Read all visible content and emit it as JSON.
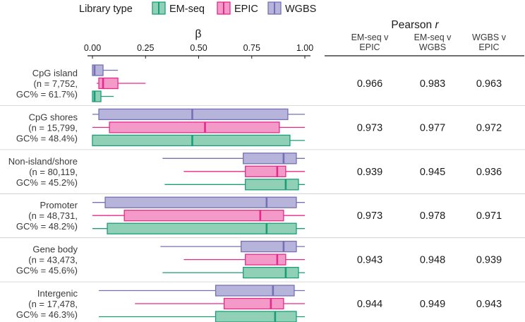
{
  "legend": {
    "title": "Library type",
    "items": [
      {
        "label": "EM-seq",
        "key": "emseq"
      },
      {
        "label": "EPIC",
        "key": "epic"
      },
      {
        "label": "WGBS",
        "key": "wgbs"
      }
    ]
  },
  "colors": {
    "emseq_fill": "#8fd0b6",
    "emseq_line": "#1b9e77",
    "epic_fill": "#f39ac8",
    "epic_line": "#e7298a",
    "wgbs_fill": "#b6b4da",
    "wgbs_line": "#7570b3",
    "axis": "#1a1a1a"
  },
  "chart_data": {
    "type": "boxplot",
    "title": "β",
    "xlim": [
      0,
      1
    ],
    "x_ticks": [
      0,
      0.25,
      0.5,
      0.75,
      1
    ],
    "x_tick_labels": [
      "0.00",
      "0.25",
      "0.50",
      "0.75",
      "1.00"
    ],
    "series_order": [
      "wgbs",
      "epic",
      "emseq"
    ],
    "groups": [
      {
        "label": [
          "CpG island",
          "(n = 7,752,",
          "GC% = 61.7%)"
        ],
        "boxes": {
          "wgbs": {
            "whislo": 0.0,
            "q1": 0.0,
            "median": 0.01,
            "q3": 0.05,
            "whishi": 0.12
          },
          "epic": {
            "whislo": 0.02,
            "q1": 0.03,
            "median": 0.05,
            "q3": 0.12,
            "whishi": 0.25
          },
          "emseq": {
            "whislo": 0.0,
            "q1": 0.0,
            "median": 0.01,
            "q3": 0.04,
            "whishi": 0.1
          }
        }
      },
      {
        "label": [
          "CpG shores",
          "(n = 15,799,",
          "GC% = 48.4%)"
        ],
        "boxes": {
          "wgbs": {
            "whislo": 0.0,
            "q1": 0.03,
            "median": 0.47,
            "q3": 0.92,
            "whishi": 1.0
          },
          "epic": {
            "whislo": 0.0,
            "q1": 0.08,
            "median": 0.53,
            "q3": 0.88,
            "whishi": 1.0
          },
          "emseq": {
            "whislo": 0.0,
            "q1": 0.0,
            "median": 0.47,
            "q3": 0.93,
            "whishi": 1.0
          }
        }
      },
      {
        "label": [
          "Non-island/shore",
          "(n = 80,119,",
          "GC% = 45.2%)"
        ],
        "boxes": {
          "wgbs": {
            "whislo": 0.33,
            "q1": 0.71,
            "median": 0.9,
            "q3": 0.96,
            "whishi": 1.0
          },
          "epic": {
            "whislo": 0.43,
            "q1": 0.72,
            "median": 0.87,
            "q3": 0.91,
            "whishi": 1.0
          },
          "emseq": {
            "whislo": 0.34,
            "q1": 0.72,
            "median": 0.91,
            "q3": 0.97,
            "whishi": 1.0
          }
        }
      },
      {
        "label": [
          "Promoter",
          "(n = 48,731,",
          "GC% = 48.2%)"
        ],
        "boxes": {
          "wgbs": {
            "whislo": 0.0,
            "q1": 0.06,
            "median": 0.82,
            "q3": 0.96,
            "whishi": 1.0
          },
          "epic": {
            "whislo": 0.0,
            "q1": 0.15,
            "median": 0.79,
            "q3": 0.9,
            "whishi": 1.0
          },
          "emseq": {
            "whislo": 0.0,
            "q1": 0.07,
            "median": 0.82,
            "q3": 0.96,
            "whishi": 1.0
          }
        }
      },
      {
        "label": [
          "Gene body",
          "(n = 43,473,",
          "GC% = 45.6%)"
        ],
        "boxes": {
          "wgbs": {
            "whislo": 0.32,
            "q1": 0.7,
            "median": 0.9,
            "q3": 0.96,
            "whishi": 1.0
          },
          "epic": {
            "whislo": 0.43,
            "q1": 0.72,
            "median": 0.87,
            "q3": 0.91,
            "whishi": 1.0
          },
          "emseq": {
            "whislo": 0.33,
            "q1": 0.71,
            "median": 0.91,
            "q3": 0.97,
            "whishi": 1.0
          }
        }
      },
      {
        "label": [
          "Intergenic",
          "(n = 17,478,",
          "GC% = 46.3%)"
        ],
        "boxes": {
          "wgbs": {
            "whislo": 0.03,
            "q1": 0.58,
            "median": 0.85,
            "q3": 0.95,
            "whishi": 1.0
          },
          "epic": {
            "whislo": 0.2,
            "q1": 0.62,
            "median": 0.84,
            "q3": 0.9,
            "whishi": 1.0
          },
          "emseq": {
            "whislo": 0.03,
            "q1": 0.58,
            "median": 0.86,
            "q3": 0.96,
            "whishi": 1.0
          }
        }
      }
    ]
  },
  "pearson": {
    "title_prefix": "Pearson ",
    "title_var": "r",
    "columns": [
      [
        "EM-seq v",
        "EPIC"
      ],
      [
        "EM-seq v",
        "WGBS"
      ],
      [
        "WGBS v",
        "EPIC"
      ]
    ],
    "rows": [
      [
        "0.966",
        "0.983",
        "0.963"
      ],
      [
        "0.973",
        "0.977",
        "0.972"
      ],
      [
        "0.939",
        "0.945",
        "0.936"
      ],
      [
        "0.973",
        "0.978",
        "0.971"
      ],
      [
        "0.943",
        "0.948",
        "0.939"
      ],
      [
        "0.944",
        "0.949",
        "0.943"
      ]
    ]
  }
}
